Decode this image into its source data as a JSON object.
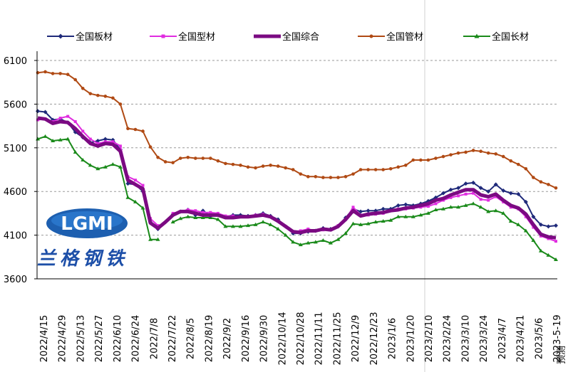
{
  "chart_data": {
    "type": "line",
    "y_ticks": [
      "6100",
      "5600",
      "5100",
      "4600",
      "4100",
      "3600"
    ],
    "ylim": [
      3600,
      6100
    ],
    "x_ticks": [
      "2022/4/15",
      "2022/4/29",
      "2022/5/13",
      "2022/5/27",
      "2022/6/10",
      "2022/6/24",
      "2022/7/8",
      "2022/7/22",
      "2022/8/5",
      "2022/8/19",
      "2022/9/2",
      "2022/9/16",
      "2022/9/30",
      "2022/10/14",
      "2022/10/28",
      "2022/11/11",
      "2022/11/25",
      "2022/12/9",
      "2022/12/23",
      "2023/1/6",
      "2023/1/20",
      "2023/2/10",
      "2023/2/24",
      "2023/3/10",
      "2023/3/24",
      "2023/4/7",
      "2023/4/21",
      "2023/5/6",
      "2023-5-19"
    ],
    "forecast_label": "预测",
    "grid": "horizontal dashed",
    "legend_position": "top",
    "logo": {
      "text_en": "LGMI",
      "text_cn": "兰格钢铁"
    },
    "series": [
      {
        "name": "全国板材",
        "color": "#1f2a7a",
        "marker": "diamond",
        "gap": [
          17,
          17
        ],
        "values": [
          5520,
          5510,
          5420,
          5430,
          5390,
          5280,
          5220,
          5160,
          5180,
          5200,
          5190,
          5080,
          4690,
          4680,
          4600,
          4250,
          4170,
          4260,
          4340,
          4370,
          4390,
          4330,
          4380,
          4320,
          4340,
          4310,
          4330,
          4330,
          4320,
          4330,
          4350,
          4320,
          4280,
          4200,
          4120,
          4120,
          4140,
          4150,
          4180,
          4170,
          4200,
          4300,
          4400,
          4370,
          4380,
          4380,
          4400,
          4400,
          4440,
          4450,
          4440,
          4460,
          4490,
          4530,
          4580,
          4620,
          4640,
          4690,
          4700,
          4640,
          4600,
          4680,
          4610,
          4580,
          4570,
          4480,
          4310,
          4220,
          4200,
          4210
        ]
      },
      {
        "name": "全国型材",
        "color": "#e02ce0",
        "marker": "square",
        "gap": [
          17,
          17
        ],
        "values": [
          5420,
          5430,
          5400,
          5440,
          5460,
          5400,
          5290,
          5200,
          5150,
          5170,
          5170,
          5120,
          4770,
          4730,
          4670,
          4290,
          4210,
          4270,
          4350,
          4370,
          4390,
          4380,
          4360,
          4360,
          4350,
          4320,
          4320,
          4310,
          4310,
          4330,
          4340,
          4310,
          4260,
          4200,
          4140,
          4150,
          4170,
          4150,
          4160,
          4160,
          4210,
          4280,
          4420,
          4330,
          4330,
          4340,
          4350,
          4380,
          4400,
          4400,
          4410,
          4420,
          4430,
          4460,
          4500,
          4530,
          4550,
          4570,
          4580,
          4510,
          4500,
          4540,
          4480,
          4420,
          4400,
          4310,
          4190,
          4090,
          4060,
          4030
        ]
      },
      {
        "name": "全国综合",
        "color": "#7b0a82",
        "marker": "none",
        "width": 5,
        "gap": null,
        "values": [
          5440,
          5430,
          5380,
          5400,
          5390,
          5320,
          5230,
          5150,
          5120,
          5150,
          5140,
          5060,
          4730,
          4680,
          4630,
          4240,
          4180,
          4250,
          4330,
          4370,
          4370,
          4350,
          4330,
          4330,
          4330,
          4300,
          4300,
          4310,
          4310,
          4320,
          4330,
          4310,
          4260,
          4200,
          4140,
          4130,
          4150,
          4150,
          4170,
          4160,
          4200,
          4280,
          4380,
          4320,
          4340,
          4350,
          4360,
          4380,
          4390,
          4410,
          4420,
          4440,
          4460,
          4500,
          4520,
          4560,
          4590,
          4620,
          4620,
          4560,
          4540,
          4570,
          4500,
          4440,
          4410,
          4340,
          4220,
          4110,
          4080,
          4070
        ]
      },
      {
        "name": "全国管材",
        "color": "#b04a14",
        "marker": "circle",
        "gap": null,
        "values": [
          5960,
          5970,
          5950,
          5950,
          5940,
          5880,
          5780,
          5720,
          5700,
          5690,
          5670,
          5600,
          5320,
          5310,
          5290,
          5110,
          4990,
          4940,
          4930,
          4980,
          4990,
          4980,
          4980,
          4980,
          4950,
          4920,
          4910,
          4900,
          4880,
          4870,
          4890,
          4900,
          4890,
          4870,
          4850,
          4800,
          4770,
          4770,
          4760,
          4760,
          4760,
          4770,
          4800,
          4850,
          4850,
          4850,
          4850,
          4860,
          4880,
          4900,
          4960,
          4960,
          4960,
          4980,
          5000,
          5020,
          5040,
          5050,
          5070,
          5060,
          5040,
          5030,
          5000,
          4950,
          4910,
          4860,
          4760,
          4710,
          4680,
          4640
        ]
      },
      {
        "name": "全国长材",
        "color": "#1a8a1a",
        "marker": "triangle",
        "gap": [
          17,
          17
        ],
        "values": [
          5200,
          5230,
          5180,
          5190,
          5200,
          5050,
          4960,
          4900,
          4860,
          4880,
          4910,
          4880,
          4530,
          4480,
          4410,
          4050,
          4050,
          4140,
          4250,
          4290,
          4310,
          4300,
          4300,
          4300,
          4280,
          4200,
          4200,
          4200,
          4210,
          4220,
          4250,
          4220,
          4170,
          4100,
          4020,
          3990,
          4010,
          4020,
          4040,
          4010,
          4050,
          4120,
          4230,
          4220,
          4230,
          4250,
          4260,
          4270,
          4310,
          4310,
          4310,
          4330,
          4350,
          4390,
          4400,
          4420,
          4420,
          4440,
          4460,
          4420,
          4370,
          4380,
          4350,
          4260,
          4220,
          4150,
          4040,
          3920,
          3870,
          3820
        ]
      }
    ]
  }
}
